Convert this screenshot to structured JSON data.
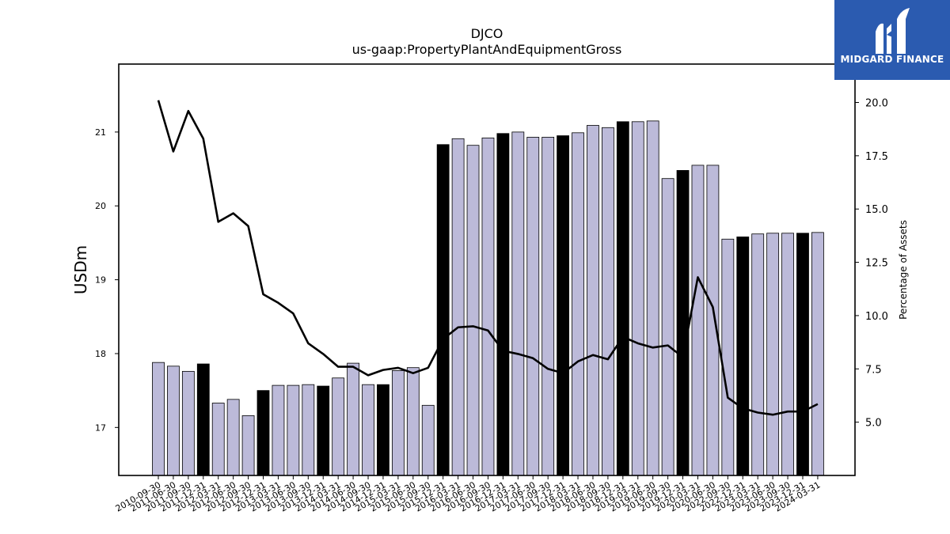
{
  "chart_data": {
    "type": "bar",
    "title": "DJCO",
    "subtitle": "us-gaap:PropertyPlantAndEquipmentGross",
    "ylabel": "USDm",
    "y2label": "Percentage of Assets",
    "ylim": [
      16.35,
      21.92
    ],
    "y2lim": [
      2.5,
      21.8
    ],
    "yticks": [
      17,
      18,
      19,
      20,
      21
    ],
    "y2ticks": [
      "5.0",
      "7.5",
      "10.0",
      "12.5",
      "15.0",
      "17.5",
      "20.0"
    ],
    "categories": [
      "2010-09-30",
      "2011-06-30",
      "2011-09-30",
      "2011-12-31",
      "2012-03-31",
      "2012-06-30",
      "2012-09-30",
      "2012-12-31",
      "2013-03-31",
      "2013-06-30",
      "2013-09-30",
      "2013-12-31",
      "2014-03-31",
      "2014-06-30",
      "2014-09-30",
      "2014-12-31",
      "2015-03-31",
      "2015-06-30",
      "2015-09-30",
      "2015-12-31",
      "2016-03-31",
      "2016-06-30",
      "2016-09-30",
      "2016-12-31",
      "2017-03-31",
      "2017-06-30",
      "2017-09-30",
      "2017-12-31",
      "2018-03-31",
      "2018-06-30",
      "2018-09-30",
      "2018-12-31",
      "2019-03-31",
      "2019-06-30",
      "2019-09-30",
      "2019-12-31",
      "2020-03-31",
      "2020-06-30",
      "2022-09-30",
      "2022-12-31",
      "2023-03-31",
      "2023-06-30",
      "2023-09-30",
      "2023-12-31",
      "2024-03-31"
    ],
    "series": [
      {
        "type": "bar",
        "values": [
          17.88,
          17.83,
          17.76,
          17.86,
          17.33,
          17.38,
          17.16,
          17.5,
          17.57,
          17.57,
          17.58,
          17.56,
          17.67,
          17.87,
          17.58,
          17.58,
          17.77,
          17.81,
          17.3,
          20.83,
          20.91,
          20.82,
          20.92,
          20.98,
          21.0,
          20.93,
          20.93,
          20.95,
          20.99,
          21.09,
          21.06,
          21.14,
          21.14,
          21.15,
          20.37,
          20.48,
          20.55,
          20.55,
          19.55,
          19.58,
          19.62,
          19.63,
          19.63,
          19.63,
          19.64
        ],
        "highlight": [
          false,
          false,
          false,
          true,
          false,
          false,
          false,
          true,
          false,
          false,
          false,
          true,
          false,
          false,
          false,
          true,
          false,
          false,
          false,
          true,
          false,
          false,
          false,
          true,
          false,
          false,
          false,
          true,
          false,
          false,
          false,
          true,
          false,
          false,
          false,
          true,
          false,
          false,
          false,
          true,
          false,
          false,
          false,
          true,
          false
        ]
      },
      {
        "type": "line",
        "axis": "right",
        "values": [
          20.1,
          17.7,
          19.6,
          18.3,
          14.4,
          14.8,
          14.2,
          11.0,
          10.6,
          10.1,
          8.7,
          8.2,
          7.6,
          7.6,
          7.2,
          7.45,
          7.55,
          7.3,
          7.55,
          8.9,
          9.45,
          9.5,
          9.3,
          8.35,
          8.2,
          8.0,
          7.5,
          7.3,
          7.85,
          8.15,
          7.95,
          9.0,
          8.7,
          8.5,
          8.6,
          8.05,
          11.8,
          10.4,
          6.15,
          5.65,
          5.45,
          5.35,
          5.5,
          5.5,
          5.85
        ]
      }
    ],
    "colors": {
      "bar": "#bcbad9",
      "bar_highlight": "#000000",
      "line": "#000000"
    }
  },
  "logo": {
    "text": "MIDGARD FINANCE",
    "background": "#2b5bb0"
  }
}
